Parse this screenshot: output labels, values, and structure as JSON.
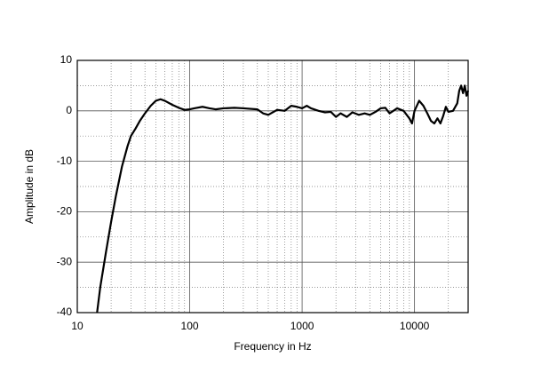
{
  "chart_data": {
    "type": "line",
    "xlabel": "Frequency in Hz",
    "ylabel": "Amplitude in dB",
    "xscale": "log",
    "grid": true,
    "minor_grid": true,
    "xlim": [
      10,
      30000
    ],
    "ylim": [
      -40,
      10
    ],
    "xticks": [
      10,
      100,
      1000,
      10000
    ],
    "yticks": [
      -40,
      -30,
      -20,
      -10,
      0,
      10
    ],
    "series": [
      {
        "name": "Amplitude",
        "color": "#000000",
        "x": [
          15,
          16,
          18,
          20,
          22,
          25,
          28,
          30,
          33,
          36,
          40,
          45,
          50,
          55,
          60,
          70,
          80,
          90,
          100,
          110,
          130,
          150,
          170,
          200,
          250,
          300,
          400,
          450,
          500,
          600,
          700,
          800,
          900,
          1000,
          1100,
          1200,
          1400,
          1600,
          1800,
          2000,
          2200,
          2500,
          2800,
          3200,
          3600,
          4000,
          4500,
          5000,
          5500,
          6000,
          7000,
          8000,
          9000,
          9500,
          10000,
          11000,
          12000,
          13000,
          14000,
          15000,
          16000,
          17000,
          18000,
          19000,
          20000,
          22000,
          24000,
          25000,
          26000,
          27000,
          28000,
          29000,
          30000
        ],
        "values": [
          -40,
          -35,
          -28,
          -22,
          -17,
          -11,
          -7,
          -5,
          -3.5,
          -2,
          -0.5,
          1,
          2,
          2.3,
          2,
          1.2,
          0.6,
          0.2,
          0.3,
          0.5,
          0.8,
          0.5,
          0.3,
          0.5,
          0.6,
          0.5,
          0.3,
          -0.5,
          -0.8,
          0.2,
          0,
          1,
          0.8,
          0.5,
          1,
          0.5,
          0,
          -0.3,
          -0.2,
          -1.2,
          -0.5,
          -1.2,
          -0.3,
          -0.8,
          -0.5,
          -0.8,
          -0.2,
          0.5,
          0.6,
          -0.5,
          0.5,
          0,
          -1.5,
          -2.5,
          0,
          2,
          1,
          -0.5,
          -2,
          -2.5,
          -1.5,
          -2.5,
          -1,
          0.8,
          -0.2,
          0,
          1.5,
          4,
          5,
          3.5,
          5,
          3,
          4
        ]
      }
    ]
  }
}
